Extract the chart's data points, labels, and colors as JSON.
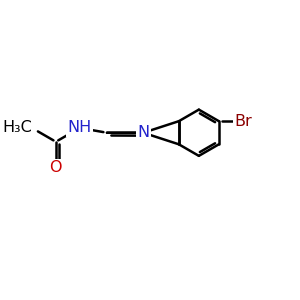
{
  "background_color": "#ffffff",
  "bond_color": "#000000",
  "bond_width": 1.8,
  "atom_colors": {
    "S": "#808000",
    "N": "#2222cc",
    "O": "#cc0000",
    "Br": "#8b0000",
    "C": "#000000",
    "H": "#000000"
  },
  "font_size_atom": 11.5
}
